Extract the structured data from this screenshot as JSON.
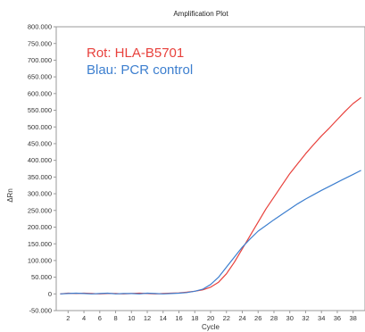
{
  "chart_data": {
    "type": "line",
    "title": "Amplification Plot",
    "xlabel": "Cycle",
    "ylabel": "ΔRn",
    "xlim": [
      0.5,
      39.5
    ],
    "ylim": [
      -50000,
      800000
    ],
    "xticks": [
      2,
      4,
      6,
      8,
      10,
      12,
      14,
      16,
      18,
      20,
      22,
      24,
      26,
      28,
      30,
      32,
      34,
      36,
      38
    ],
    "yticks": [
      {
        "value": -50000,
        "label": "-50.000"
      },
      {
        "value": 0,
        "label": "0"
      },
      {
        "value": 50000,
        "label": "50.000"
      },
      {
        "value": 100000,
        "label": "100.000"
      },
      {
        "value": 150000,
        "label": "150.000"
      },
      {
        "value": 200000,
        "label": "200.000"
      },
      {
        "value": 250000,
        "label": "250.000"
      },
      {
        "value": 300000,
        "label": "300.000"
      },
      {
        "value": 350000,
        "label": "350.000"
      },
      {
        "value": 400000,
        "label": "400.000"
      },
      {
        "value": 450000,
        "label": "450.000"
      },
      {
        "value": 500000,
        "label": "500.000"
      },
      {
        "value": 550000,
        "label": "550.000"
      },
      {
        "value": 600000,
        "label": "600.000"
      },
      {
        "value": 650000,
        "label": "650.000"
      },
      {
        "value": 700000,
        "label": "700.000"
      },
      {
        "value": 750000,
        "label": "750.000"
      },
      {
        "value": 800000,
        "label": "800.000"
      }
    ],
    "grid": false,
    "legend_position": "top-left",
    "x": [
      1,
      2,
      3,
      4,
      5,
      6,
      7,
      8,
      9,
      10,
      11,
      12,
      13,
      14,
      15,
      16,
      17,
      18,
      19,
      20,
      21,
      22,
      23,
      24,
      25,
      26,
      27,
      28,
      29,
      30,
      31,
      32,
      33,
      34,
      35,
      36,
      37,
      38,
      39
    ],
    "series": [
      {
        "legend_label": "Rot: HLA-B5701",
        "color": "#e8413c",
        "values": [
          0,
          2000,
          1000,
          2000,
          1000,
          0,
          1000,
          1000,
          0,
          1000,
          2000,
          1000,
          0,
          1000,
          2000,
          3000,
          5000,
          8000,
          12000,
          20000,
          35000,
          60000,
          95000,
          135000,
          175000,
          215000,
          255000,
          290000,
          325000,
          360000,
          390000,
          420000,
          447000,
          473000,
          497000,
          522000,
          547000,
          570000,
          588000
        ]
      },
      {
        "legend_label": "Blau: PCR control",
        "color": "#3d7fcf",
        "values": [
          0,
          1000,
          2000,
          1000,
          0,
          1000,
          2000,
          0,
          1000,
          1000,
          0,
          2000,
          1000,
          0,
          1000,
          2000,
          4000,
          8000,
          14000,
          28000,
          50000,
          80000,
          110000,
          140000,
          165000,
          188000,
          205000,
          222000,
          238000,
          254000,
          270000,
          284000,
          297000,
          310000,
          322000,
          334000,
          346000,
          358000,
          370000
        ]
      }
    ]
  }
}
